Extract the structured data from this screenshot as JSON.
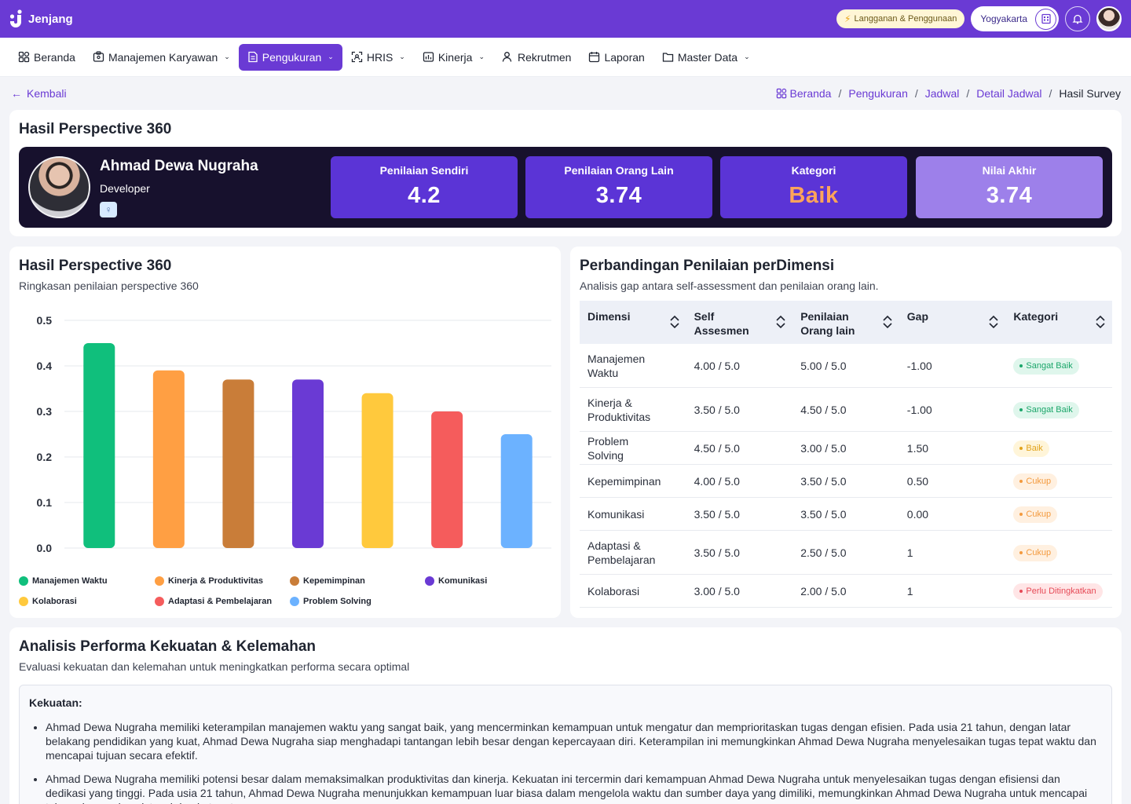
{
  "app": {
    "name": "Jenjang"
  },
  "topbar": {
    "subscription_label": "Langganan & Penggunaan",
    "location": "Yogyakarta",
    "icons": [
      "building-icon",
      "bell-icon",
      "user-avatar"
    ]
  },
  "nav": [
    {
      "label": "Beranda",
      "icon": "grid-icon",
      "dropdown": false,
      "active": false
    },
    {
      "label": "Manajemen Karyawan",
      "icon": "id-card-icon",
      "dropdown": true,
      "active": false
    },
    {
      "label": "Pengukuran",
      "icon": "document-icon",
      "dropdown": true,
      "active": true
    },
    {
      "label": "HRIS",
      "icon": "scan-icon",
      "dropdown": true,
      "active": false
    },
    {
      "label": "Kinerja",
      "icon": "chart-icon",
      "dropdown": true,
      "active": false
    },
    {
      "label": "Rekrutmen",
      "icon": "user-add-icon",
      "dropdown": false,
      "active": false
    },
    {
      "label": "Laporan",
      "icon": "calendar-icon",
      "dropdown": false,
      "active": false
    },
    {
      "label": "Master Data",
      "icon": "folder-icon",
      "dropdown": true,
      "active": false
    }
  ],
  "back_label": "Kembali",
  "breadcrumb": {
    "items": [
      "Beranda",
      "Pengukuran",
      "Jadwal",
      "Detail Jadwal"
    ],
    "current": "Hasil Survey"
  },
  "summary": {
    "title": "Hasil Perspective 360",
    "name": "Ahmad Dewa Nugraha",
    "role": "Developer",
    "scores": [
      {
        "label": "Penilaian Sendiri",
        "value": "4.2"
      },
      {
        "label": "Penilaian Orang Lain",
        "value": "3.74"
      },
      {
        "label": "Kategori",
        "value": "Baik"
      },
      {
        "label": "Nilai Akhir",
        "value": "3.74"
      }
    ]
  },
  "chart_card": {
    "title": "Hasil Perspective 360",
    "subtitle": "Ringkasan penilaian perspective 360"
  },
  "chart_data": {
    "type": "bar",
    "categories": [
      "Manajemen Waktu",
      "Kinerja & Produktivitas",
      "Kepemimpinan",
      "Komunikasi",
      "Kolaborasi",
      "Adaptasi & Pembelajaran",
      "Problem Solving"
    ],
    "values": [
      0.45,
      0.39,
      0.37,
      0.37,
      0.34,
      0.3,
      0.25
    ],
    "colors": [
      "#10bf7c",
      "#ff9f43",
      "#c97d39",
      "#6a3ad4",
      "#ffc93d",
      "#f55c5c",
      "#6cb2ff"
    ],
    "yticks": [
      "0.0",
      "0.1",
      "0.2",
      "0.3",
      "0.4",
      "0.5"
    ],
    "ylim": [
      0,
      0.5
    ],
    "grid": true,
    "legend_position": "bottom"
  },
  "compare": {
    "title": "Perbandingan Penilaian perDimensi",
    "subtitle": "Analisis gap antara self-assessment dan penilaian orang lain.",
    "headers": [
      "Dimensi",
      "Self Assesmen",
      "Penilaian Orang lain",
      "Gap",
      "Kategori"
    ],
    "rows": [
      {
        "dimensi": "Manajemen Waktu",
        "self": "4.00 / 5.0",
        "other": "5.00 / 5.0",
        "gap": "-1.00",
        "kategori": "Sangat Baik",
        "tone": "green"
      },
      {
        "dimensi": "Kinerja & Produktivitas",
        "self": "3.50 / 5.0",
        "other": "4.50 / 5.0",
        "gap": "-1.00",
        "kategori": "Sangat Baik",
        "tone": "green"
      },
      {
        "dimensi": "Problem Solving",
        "self": "4.50 / 5.0",
        "other": "3.00 / 5.0",
        "gap": "1.50",
        "kategori": "Baik",
        "tone": "yellow"
      },
      {
        "dimensi": "Kepemimpinan",
        "self": "4.00 / 5.0",
        "other": "3.50 / 5.0",
        "gap": "0.50",
        "kategori": "Cukup",
        "tone": "orange"
      },
      {
        "dimensi": "Komunikasi",
        "self": "3.50 / 5.0",
        "other": "3.50 / 5.0",
        "gap": "0.00",
        "kategori": "Cukup",
        "tone": "orange"
      },
      {
        "dimensi": "Adaptasi & Pembelajaran",
        "self": "3.50 / 5.0",
        "other": "2.50 / 5.0",
        "gap": "1",
        "kategori": "Cukup",
        "tone": "orange"
      },
      {
        "dimensi": "Kolaborasi",
        "self": "3.00 / 5.0",
        "other": "2.00 / 5.0",
        "gap": "1",
        "kategori": "Perlu Ditingkatkan",
        "tone": "red"
      }
    ]
  },
  "analysis": {
    "title": "Analisis Performa Kekuatan & Kelemahan",
    "subtitle": "Evaluasi kekuatan dan kelemahan untuk meningkatkan performa secara optimal",
    "strengths_label": "Kekuatan:",
    "strengths": [
      "Ahmad Dewa Nugraha memiliki keterampilan manajemen waktu yang sangat baik, yang mencerminkan kemampuan untuk mengatur dan memprioritaskan tugas dengan efisien. Pada usia 21 tahun, dengan latar belakang pendidikan yang kuat, Ahmad Dewa Nugraha siap menghadapi tantangan lebih besar dengan kepercayaan diri. Keterampilan ini memungkinkan Ahmad Dewa Nugraha menyelesaikan tugas tepat waktu dan mencapai tujuan secara efektif.",
      "Ahmad Dewa Nugraha memiliki potensi besar dalam memaksimalkan produktivitas dan kinerja. Kekuatan ini tercermin dari kemampuan Ahmad Dewa Nugraha untuk menyelesaikan tugas dengan efisiensi dan dedikasi yang tinggi. Pada usia 21 tahun, Ahmad Dewa Nugraha menunjukkan kemampuan luar biasa dalam mengelola waktu dan sumber daya yang dimiliki, memungkinkan Ahmad Dewa Nugraha untuk mencapai tujuan dengan konsistensi dan ketepatan."
    ]
  }
}
